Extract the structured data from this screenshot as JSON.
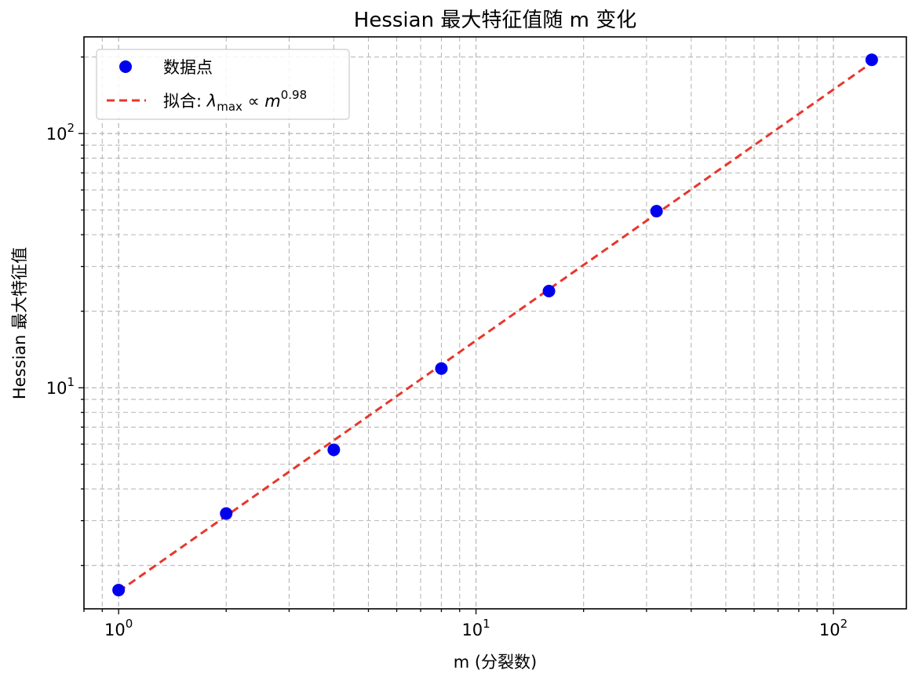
{
  "chart_data": {
    "type": "scatter",
    "title": "Hessian 最大特征值随 m 变化",
    "xlabel": "m (分裂数)",
    "ylabel": "Hessian 最大特征值",
    "xscale": "log",
    "yscale": "log",
    "xlim": [
      0.8,
      160
    ],
    "ylim": [
      1.35,
      240
    ],
    "grid": true,
    "legend_position": "top-left",
    "x_ticks": [
      {
        "base": "10",
        "exp": "0",
        "value": 1
      },
      {
        "base": "10",
        "exp": "1",
        "value": 10
      },
      {
        "base": "10",
        "exp": "2",
        "value": 100
      }
    ],
    "y_ticks": [
      {
        "base": "10",
        "exp": "1",
        "value": 10
      },
      {
        "base": "10",
        "exp": "2",
        "value": 100
      }
    ],
    "series": [
      {
        "name": "数据点",
        "kind": "scatter",
        "color": "#0000ee",
        "x": [
          1,
          2,
          4,
          8,
          16,
          32,
          128
        ],
        "y": [
          1.6,
          3.2,
          5.7,
          11.9,
          24.0,
          49.5,
          195
        ]
      },
      {
        "name": "拟合",
        "kind": "fit-line",
        "color": "#e8372c",
        "label_prefix": "拟合: ",
        "label_lambda": "λ",
        "label_sub": "max",
        "label_prop": " ∝ ",
        "label_m": "m",
        "label_exp": "0.98",
        "x": [
          1,
          128
        ],
        "y": [
          1.58,
          190
        ]
      }
    ]
  }
}
